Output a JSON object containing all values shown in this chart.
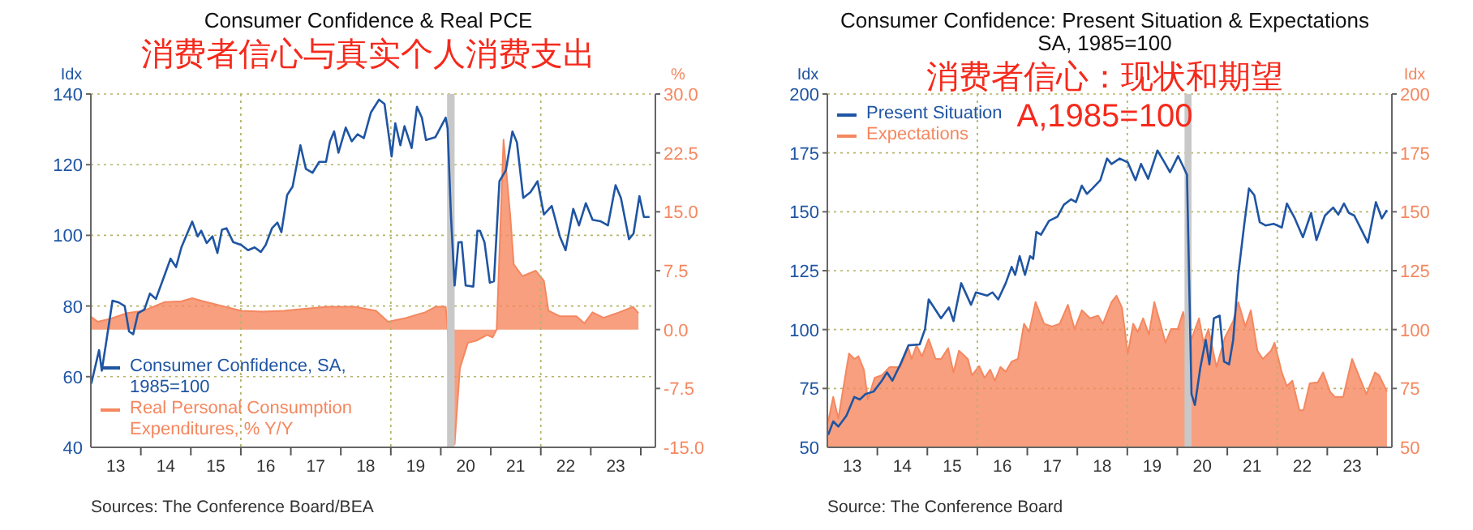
{
  "chart_data": [
    {
      "type": "line",
      "title": "Consumer Confidence & Real PCE",
      "ylabel": "Idx",
      "y2label": "%",
      "annotations": [
        "消费者信心与真实个人消费支出",
        "Sources:   The Conference Board/BEA"
      ],
      "xlim": [
        "2013-01-01",
        "2024-04-17"
      ],
      "xticks": [
        {
          "value": "2013-07-02",
          "label": "13"
        },
        {
          "value": "2014-07-02",
          "label": "14"
        },
        {
          "value": "2015-07-02",
          "label": "15"
        },
        {
          "value": "2016-07-02",
          "label": "16"
        },
        {
          "value": "2017-07-02",
          "label": "17"
        },
        {
          "value": "2018-07-02",
          "label": "18"
        },
        {
          "value": "2019-07-02",
          "label": "19"
        },
        {
          "value": "2020-07-02",
          "label": "20"
        },
        {
          "value": "2021-07-02",
          "label": "21"
        },
        {
          "value": "2022-07-02",
          "label": "22"
        },
        {
          "value": "2023-07-02",
          "label": "23"
        },
        {
          "value": "2014-01-01",
          "label": null
        },
        {
          "value": "2015-01-01",
          "label": null
        },
        {
          "value": "2016-01-01",
          "label": null
        },
        {
          "value": "2017-01-01",
          "label": null
        },
        {
          "value": "2018-01-01",
          "label": null
        },
        {
          "value": "2019-01-01",
          "label": null
        },
        {
          "value": "2020-01-01",
          "label": null
        },
        {
          "value": "2021-01-01",
          "label": null
        },
        {
          "value": "2022-01-01",
          "label": null
        },
        {
          "value": "2023-01-01",
          "label": null
        },
        {
          "value": "2024-01-01",
          "label": null
        }
      ],
      "ylim": [
        40,
        140
      ],
      "yticks": [
        40,
        60,
        80,
        100,
        120,
        140
      ],
      "y2lim": [
        -15,
        30
      ],
      "y2ticks": [
        {
          "value": -15,
          "label": "-15.0"
        },
        {
          "value": -7.5,
          "label": "-7.5"
        },
        {
          "value": 0,
          "label": "0.0"
        },
        {
          "value": 7.5,
          "label": "7.5"
        },
        {
          "value": 15,
          "label": "15.0"
        },
        {
          "value": 22.5,
          "label": "22.5"
        },
        {
          "value": 30,
          "label": "30.0"
        }
      ],
      "grid": "y",
      "legend": "bottom left",
      "bands": [
        {
          "axis": "x",
          "from": "2020-02-16",
          "to": "2020-04-11",
          "color": "#c8c8c8"
        }
      ],
      "ref_lines": [
        {
          "axis": "x",
          "value": "2016-01-01",
          "color": "#b5b56a",
          "line_style": "dotted"
        },
        {
          "axis": "x",
          "value": "2019-01-01",
          "color": "#b5b56a",
          "line_style": "dotted"
        },
        {
          "axis": "x",
          "value": "2022-01-01",
          "color": "#b5b56a",
          "line_style": "dotted"
        }
      ],
      "series": [
        {
          "name": "Real Personal Consumption Expenditures, % Y/Y",
          "type": "area",
          "axis": "y2",
          "color": "#f5875f",
          "x": [
            "2013-01-04",
            "2013-02-20",
            "2013-05-26",
            "2013-09-25",
            "2014-01-21",
            "2014-06-25",
            "2014-10-24",
            "2015-01-11",
            "2015-04-01",
            "2015-07-27",
            "2016-01-04",
            "2016-06-08",
            "2016-11-13",
            "2017-03-12",
            "2017-09-25",
            "2018-04-11",
            "2018-09-15",
            "2018-12-12",
            "2019-04-04",
            "2019-09-08",
            "2019-11-23",
            "2020-02-06",
            "2020-02-20",
            "2020-04-11",
            "2020-05-20",
            "2020-07-17",
            "2020-09-18",
            "2020-12-05",
            "2021-01-14",
            "2021-02-13",
            "2021-04-04",
            "2021-05-23",
            "2021-06-18",
            "2021-08-20",
            "2021-11-26",
            "2022-01-24",
            "2022-02-26",
            "2022-05-20",
            "2022-09-18",
            "2022-11-16",
            "2023-01-14",
            "2023-04-04",
            "2023-07-27",
            "2023-11-06",
            "2023-12-15"
          ],
          "values": [
            1.6,
            1.0,
            1.4,
            2.1,
            2.4,
            3.5,
            3.6,
            4.0,
            3.6,
            3.1,
            2.4,
            2.3,
            2.4,
            2.6,
            2.9,
            2.9,
            2.4,
            1.0,
            1.4,
            2.2,
            2.9,
            2.9,
            0,
            -14.6,
            -4.9,
            -1.7,
            -1.4,
            -0.7,
            -1.0,
            0,
            24.2,
            14.5,
            8.3,
            6.8,
            7.5,
            6.2,
            2.4,
            1.7,
            1.7,
            0.8,
            2.2,
            1.5,
            2.2,
            2.9,
            2.1
          ]
        },
        {
          "name": "Consumer Confidence, SA, 1985=100",
          "type": "line",
          "axis": "y",
          "color": "#1f55a3",
          "x": [
            "2013-01-04",
            "2013-02-03",
            "2013-03-02",
            "2013-03-22",
            "2013-04-24",
            "2013-06-08",
            "2013-07-24",
            "2013-09-05",
            "2013-10-07",
            "2013-11-06",
            "2013-12-12",
            "2014-01-27",
            "2014-03-08",
            "2014-04-21",
            "2014-06-25",
            "2014-08-06",
            "2014-09-15",
            "2014-10-24",
            "2015-01-11",
            "2015-02-20",
            "2015-03-18",
            "2015-04-27",
            "2015-06-08",
            "2015-07-14",
            "2015-08-16",
            "2015-09-18",
            "2015-11-06",
            "2016-01-04",
            "2016-02-23",
            "2016-04-11",
            "2016-05-26",
            "2016-07-01",
            "2016-08-16",
            "2016-09-25",
            "2016-10-24",
            "2016-12-05",
            "2017-01-14",
            "2017-03-12",
            "2017-04-21",
            "2017-06-08",
            "2017-07-27",
            "2017-09-15",
            "2017-10-14",
            "2017-11-13",
            "2017-12-15",
            "2018-02-06",
            "2018-03-22",
            "2018-05-03",
            "2018-06-18",
            "2018-08-09",
            "2018-10-07",
            "2018-11-16",
            "2019-01-07",
            "2019-02-03",
            "2019-03-12",
            "2019-04-11",
            "2019-06-02",
            "2019-07-11",
            "2019-08-16",
            "2019-09-15",
            "2019-11-23",
            "2020-02-06",
            "2020-02-20",
            "2020-03-15",
            "2020-04-11",
            "2020-05-09",
            "2020-06-02",
            "2020-07-01",
            "2020-08-26",
            "2020-09-25",
            "2020-10-14",
            "2020-11-16",
            "2020-12-25",
            "2021-01-24",
            "2021-03-05",
            "2021-04-21",
            "2021-06-08",
            "2021-07-11",
            "2021-08-26",
            "2021-10-17",
            "2021-12-08",
            "2022-01-24",
            "2022-03-22",
            "2022-05-20",
            "2022-07-01",
            "2022-08-26",
            "2022-10-07",
            "2022-11-26",
            "2023-01-14",
            "2023-03-12",
            "2023-05-06",
            "2023-07-01",
            "2023-08-09",
            "2023-10-07",
            "2023-11-09",
            "2023-12-22",
            "2024-01-24",
            "2024-03-05"
          ],
          "values": [
            58,
            63,
            67.5,
            61.7,
            70,
            81.5,
            81,
            80,
            72.8,
            72,
            78,
            79,
            83.5,
            82,
            88.9,
            93.4,
            91,
            96.6,
            103.9,
            99.7,
            101.3,
            97.8,
            99.7,
            95,
            101.6,
            102,
            98.1,
            97.3,
            95.8,
            96.6,
            95.3,
            97.3,
            102,
            103.6,
            100.9,
            111.4,
            113.8,
            125.5,
            118.8,
            117.7,
            120.8,
            120.8,
            126.6,
            129.4,
            123.4,
            130.5,
            126.6,
            128.6,
            127.5,
            134.8,
            138.4,
            137.2,
            122.3,
            131.7,
            125.5,
            130.9,
            124.7,
            136.4,
            133.3,
            127,
            127.8,
            133.3,
            130.2,
            105.9,
            85.8,
            98,
            98.1,
            85.8,
            85.5,
            101.3,
            101.3,
            98,
            86.6,
            87,
            115.3,
            118.4,
            129.4,
            126.3,
            110.6,
            112.2,
            115.3,
            105.9,
            108.3,
            99.7,
            95.8,
            107.5,
            102.8,
            109.1,
            104.4,
            104,
            102.8,
            114.2,
            110.6,
            98.9,
            100.5,
            111.1,
            105.2,
            105.2
          ]
        }
      ]
    },
    {
      "type": "line",
      "title": "Consumer Confidence: Present Situation & Expectations",
      "subtitle": "SA, 1985=100",
      "ylabel": "Idx",
      "y2label": "Idx",
      "annotations": [
        "消费者信心：现状和期望",
        "A,1985=100",
        "Source:  The Conference Board"
      ],
      "xlim": [
        "2013-01-01",
        "2024-04-17"
      ],
      "xticks": [
        {
          "value": "2013-07-02",
          "label": "13"
        },
        {
          "value": "2014-07-02",
          "label": "14"
        },
        {
          "value": "2015-07-02",
          "label": "15"
        },
        {
          "value": "2016-07-02",
          "label": "16"
        },
        {
          "value": "2017-07-02",
          "label": "17"
        },
        {
          "value": "2018-07-02",
          "label": "18"
        },
        {
          "value": "2019-07-02",
          "label": "19"
        },
        {
          "value": "2020-07-02",
          "label": "20"
        },
        {
          "value": "2021-07-02",
          "label": "21"
        },
        {
          "value": "2022-07-02",
          "label": "22"
        },
        {
          "value": "2023-07-02",
          "label": "23"
        },
        {
          "value": "2014-01-01",
          "label": null
        },
        {
          "value": "2015-01-01",
          "label": null
        },
        {
          "value": "2016-01-01",
          "label": null
        },
        {
          "value": "2017-01-01",
          "label": null
        },
        {
          "value": "2018-01-01",
          "label": null
        },
        {
          "value": "2019-01-01",
          "label": null
        },
        {
          "value": "2020-01-01",
          "label": null
        },
        {
          "value": "2021-01-01",
          "label": null
        },
        {
          "value": "2022-01-01",
          "label": null
        },
        {
          "value": "2023-01-01",
          "label": null
        },
        {
          "value": "2024-01-01",
          "label": null
        }
      ],
      "ylim": [
        50,
        200
      ],
      "yticks": [
        50,
        75,
        100,
        125,
        150,
        175,
        200
      ],
      "y2lim": [
        50,
        200
      ],
      "y2ticks": [
        50,
        75,
        100,
        125,
        150,
        175,
        200
      ],
      "grid": "y",
      "legend": "top left",
      "bands": [
        {
          "axis": "x",
          "from": "2020-02-23",
          "to": "2020-04-14",
          "color": "#c8c8c8"
        }
      ],
      "ref_lines": [
        {
          "axis": "x",
          "value": "2016-01-01",
          "color": "#b5b56a",
          "line_style": "dotted"
        },
        {
          "axis": "x",
          "value": "2019-01-01",
          "color": "#b5b56a",
          "line_style": "dotted"
        },
        {
          "axis": "x",
          "value": "2022-01-01",
          "color": "#b5b56a",
          "line_style": "dotted"
        }
      ],
      "series": [
        {
          "name": "Expectations",
          "type": "area",
          "axis": "y2",
          "color": "#f5875f",
          "x": [
            "2013-01-07",
            "2013-02-13",
            "2013-03-22",
            "2013-06-08",
            "2013-07-17",
            "2013-08-16",
            "2013-09-25",
            "2013-10-24",
            "2013-12-12",
            "2014-02-03",
            "2014-04-01",
            "2014-06-18",
            "2014-08-16",
            "2014-09-08",
            "2014-10-14",
            "2014-11-23",
            "2015-01-11",
            "2015-03-02",
            "2015-04-11",
            "2015-06-02",
            "2015-07-11",
            "2015-08-20",
            "2015-10-24",
            "2015-11-23",
            "2016-01-14",
            "2016-02-23",
            "2016-04-04",
            "2016-05-09",
            "2016-06-18",
            "2016-07-27",
            "2016-09-08",
            "2016-10-24",
            "2016-12-08",
            "2017-01-14",
            "2017-03-02",
            "2017-05-03",
            "2017-07-01",
            "2017-08-26",
            "2017-10-24",
            "2017-12-12",
            "2018-02-03",
            "2018-04-04",
            "2018-06-02",
            "2018-07-07",
            "2018-09-08",
            "2018-10-14",
            "2018-11-23",
            "2019-01-04",
            "2019-02-13",
            "2019-03-18",
            "2019-04-27",
            "2019-06-08",
            "2019-07-17",
            "2019-08-26",
            "2019-10-07",
            "2019-11-16",
            "2020-01-04",
            "2020-02-13",
            "2020-04-04",
            "2020-06-08",
            "2020-07-11",
            "2020-08-16",
            "2020-10-14",
            "2020-12-15",
            "2021-02-13",
            "2021-03-22",
            "2021-05-13",
            "2021-06-22",
            "2021-08-09",
            "2021-09-18",
            "2021-11-16",
            "2021-12-12",
            "2022-02-03",
            "2022-03-12",
            "2022-04-21",
            "2022-06-12",
            "2022-07-11",
            "2022-08-26",
            "2022-10-24",
            "2022-12-02",
            "2023-01-21",
            "2023-02-26",
            "2023-04-27",
            "2023-07-01",
            "2023-08-26",
            "2023-10-14",
            "2023-12-15",
            "2024-01-14",
            "2024-03-12"
          ],
          "values": [
            61,
            71.4,
            62.2,
            89.8,
            87.5,
            88.7,
            82.9,
            70.3,
            79.5,
            80.6,
            84.1,
            84.1,
            92.1,
            87.5,
            93.3,
            88.7,
            96,
            87.5,
            87.5,
            92.1,
            81.8,
            91,
            87.5,
            80.6,
            84.5,
            79.5,
            83,
            78.3,
            84.1,
            82.2,
            86.4,
            87.5,
            102.5,
            99,
            111.7,
            102.5,
            101.3,
            102.5,
            110.5,
            100.2,
            108.2,
            104.8,
            105.9,
            102.5,
            111.7,
            114.4,
            109.4,
            89.8,
            102.5,
            99,
            104.8,
            97.9,
            111.7,
            103.6,
            94.4,
            100.2,
            100.2,
            107.5,
            94.4,
            104.8,
            94.4,
            100.2,
            84.1,
            96.7,
            103.6,
            111.7,
            101.3,
            108.2,
            91,
            87.5,
            91,
            94.4,
            81.8,
            76,
            78.3,
            65.7,
            65.7,
            77.2,
            77.6,
            81.8,
            73.7,
            71.4,
            71.4,
            87.5,
            79.5,
            72.6,
            81.8,
            80.6,
            73.7
          ]
        },
        {
          "name": "Present Situation",
          "type": "line",
          "axis": "y",
          "color": "#1f55a3",
          "x": [
            "2013-01-07",
            "2013-02-13",
            "2013-03-22",
            "2013-05-20",
            "2013-07-17",
            "2013-08-26",
            "2013-10-07",
            "2013-12-05",
            "2014-02-03",
            "2014-03-12",
            "2014-04-21",
            "2014-06-18",
            "2014-08-16",
            "2014-11-06",
            "2014-12-15",
            "2015-01-11",
            "2015-04-11",
            "2015-06-08",
            "2015-07-11",
            "2015-09-05",
            "2015-11-16",
            "2015-12-22",
            "2016-03-12",
            "2016-04-21",
            "2016-06-02",
            "2016-07-27",
            "2016-09-08",
            "2016-10-04",
            "2016-11-06",
            "2016-12-15",
            "2017-01-21",
            "2017-02-13",
            "2017-03-08",
            "2017-04-11",
            "2017-06-08",
            "2017-08-09",
            "2017-09-25",
            "2017-11-16",
            "2017-12-22",
            "2018-02-03",
            "2018-03-12",
            "2018-04-21",
            "2018-06-18",
            "2018-08-06",
            "2018-09-08",
            "2018-11-06",
            "2019-01-04",
            "2019-03-02",
            "2019-04-11",
            "2019-06-02",
            "2019-08-09",
            "2019-09-25",
            "2019-11-09",
            "2020-01-07",
            "2020-02-23",
            "2020-03-12",
            "2020-04-14",
            "2020-05-09",
            "2020-06-18",
            "2020-07-27",
            "2020-08-23",
            "2020-09-25",
            "2020-11-06",
            "2020-12-08",
            "2021-01-14",
            "2021-02-13",
            "2021-03-22",
            "2021-05-03",
            "2021-06-08",
            "2021-07-17",
            "2021-08-26",
            "2021-10-07",
            "2021-12-05",
            "2022-02-03",
            "2022-03-12",
            "2022-05-09",
            "2022-07-07",
            "2022-09-05",
            "2022-10-14",
            "2022-12-15",
            "2023-02-13",
            "2023-03-22",
            "2023-05-03",
            "2023-06-08",
            "2023-07-17",
            "2023-08-26",
            "2023-10-24",
            "2023-12-22",
            "2024-02-03",
            "2024-03-12"
          ],
          "values": [
            55.3,
            61,
            58.8,
            63.4,
            71.4,
            70.3,
            72.6,
            73.7,
            78.3,
            81.8,
            78.3,
            85.2,
            93.3,
            93.7,
            100.2,
            112.8,
            104.8,
            109.4,
            103.6,
            119.7,
            110.5,
            115.8,
            114.4,
            115.8,
            112.8,
            119.7,
            126.6,
            123.2,
            131.2,
            123.2,
            131.2,
            130,
            141.5,
            140.3,
            146.1,
            147.9,
            153,
            155.3,
            154.1,
            161.1,
            157.6,
            159.9,
            163.4,
            172.6,
            170.3,
            172.6,
            171,
            163.4,
            170.3,
            164,
            176,
            171.4,
            166.8,
            173.7,
            168,
            165.7,
            72.6,
            68,
            84,
            95.6,
            85.2,
            104.8,
            105.9,
            86.4,
            85.2,
            95.6,
            123.2,
            143.8,
            159.9,
            157.1,
            145.6,
            144.2,
            144.9,
            143.3,
            153.5,
            147.2,
            139.2,
            149.5,
            138,
            148.4,
            151.8,
            148.8,
            153.5,
            149.5,
            148.4,
            143.8,
            136.9,
            154.1,
            147.2,
            150.7
          ]
        }
      ]
    }
  ]
}
